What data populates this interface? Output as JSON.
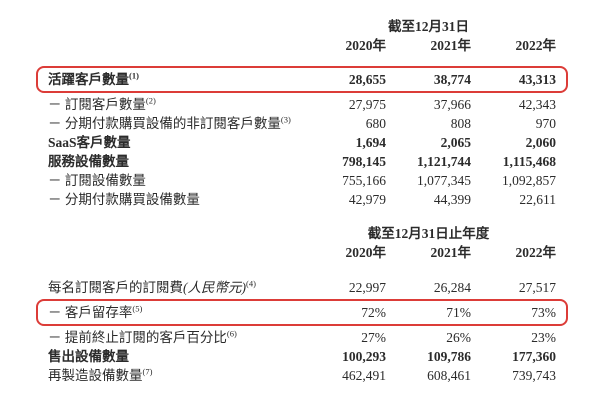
{
  "colors": {
    "highlight_red": "#dc3c38",
    "text": "#2b2b2b"
  },
  "section1": {
    "period_header": "截至12月31日",
    "years": [
      "2020年",
      "2021年",
      "2022年"
    ],
    "rows": [
      {
        "label": "活躍客戶數量",
        "sup": "(1)",
        "values": [
          "28,655",
          "38,774",
          "43,313"
        ],
        "bold": true,
        "highlight": true
      },
      {
        "label": "－ 訂閱客戶數量",
        "sup": "(2)",
        "values": [
          "27,975",
          "37,966",
          "42,343"
        ]
      },
      {
        "label": "－ 分期付款購買設備的非訂閱客戶數量",
        "sup": "(3)",
        "values": [
          "680",
          "808",
          "970"
        ]
      },
      {
        "label": "SaaS客戶數量",
        "values": [
          "1,694",
          "2,065",
          "2,060"
        ],
        "bold": true
      },
      {
        "label": "服務設備數量",
        "values": [
          "798,145",
          "1,121,744",
          "1,115,468"
        ],
        "bold": true
      },
      {
        "label": "－ 訂閱設備數量",
        "values": [
          "755,166",
          "1,077,345",
          "1,092,857"
        ]
      },
      {
        "label": "－ 分期付款購買設備數量",
        "values": [
          "42,979",
          "44,399",
          "22,611"
        ]
      }
    ]
  },
  "section2": {
    "period_header": "截至12月31日止年度",
    "years": [
      "2020年",
      "2021年",
      "2022年"
    ],
    "rows": [
      {
        "label": "每名訂閱客戶的訂閱費",
        "label_italic": "(人民幣元)",
        "sup": "(4)",
        "values": [
          "22,997",
          "26,284",
          "27,517"
        ]
      },
      {
        "label": "－ 客戶留存率",
        "sup": "(5)",
        "values": [
          "72%",
          "71%",
          "73%"
        ],
        "highlight": true
      },
      {
        "label": "－ 提前終止訂閱的客戶百分比",
        "sup": "(6)",
        "values": [
          "27%",
          "26%",
          "23%"
        ]
      },
      {
        "label": "售出設備數量",
        "values": [
          "100,293",
          "109,786",
          "177,360"
        ],
        "bold": true
      },
      {
        "label": "再製造設備數量",
        "sup": "(7)",
        "values": [
          "462,491",
          "608,461",
          "739,743"
        ]
      }
    ]
  }
}
